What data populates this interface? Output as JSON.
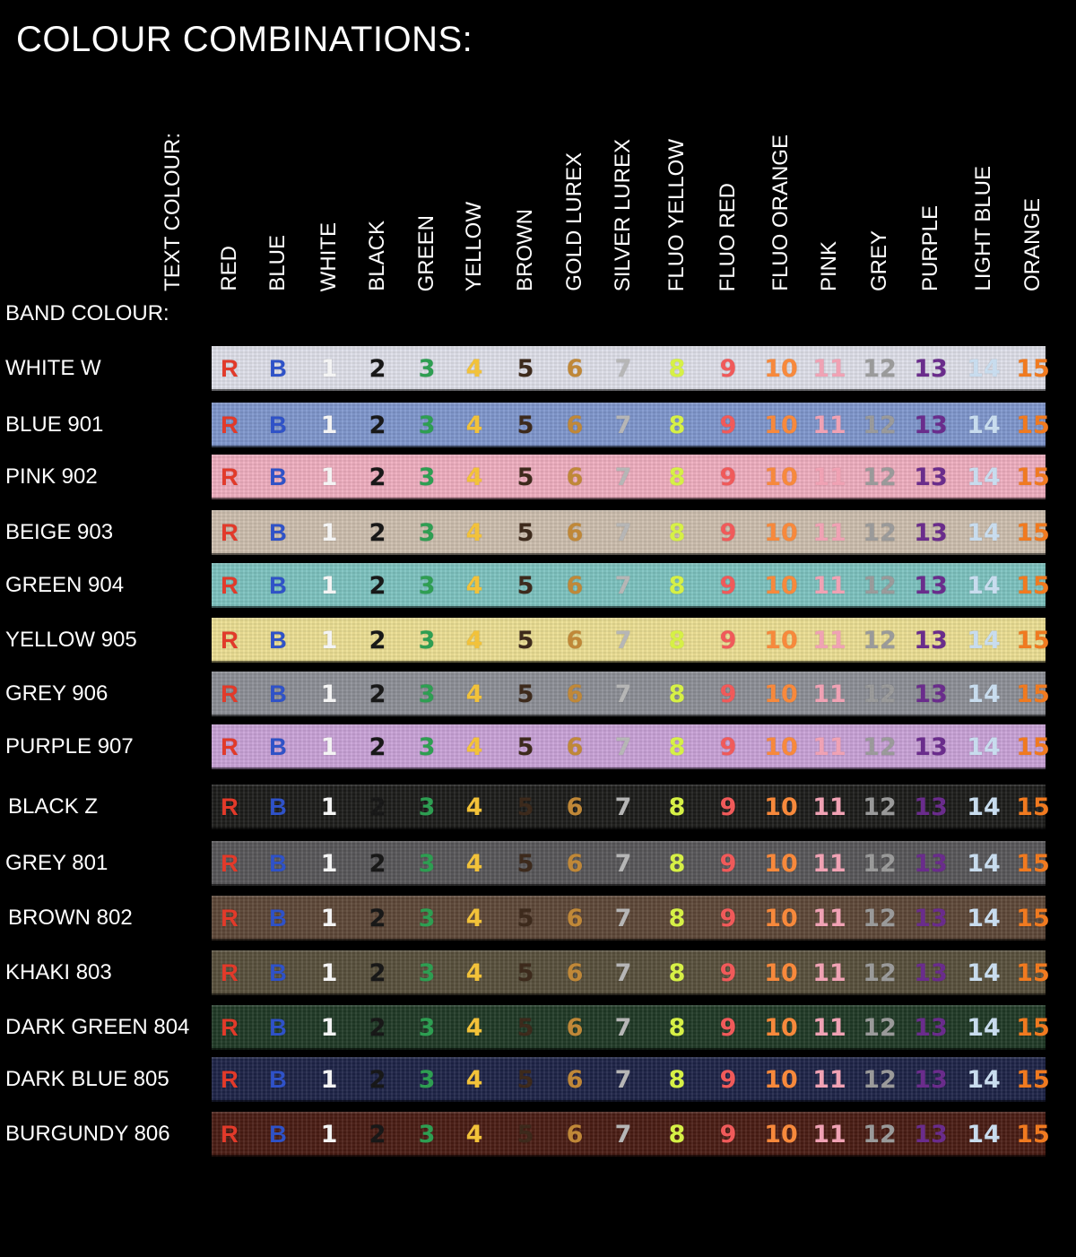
{
  "title": "COLOUR COMBINATIONS:",
  "text_colour_header": "TEXT COLOUR:",
  "band_colour_header": "BAND COLOUR:",
  "text_colours": [
    {
      "name": "RED",
      "code": "R",
      "color": "#e23a2a"
    },
    {
      "name": "BLUE",
      "code": "B",
      "color": "#2f52c8"
    },
    {
      "name": "WHITE",
      "code": "1",
      "color": "#f4f4f4"
    },
    {
      "name": "BLACK",
      "code": "2",
      "color": "#181818"
    },
    {
      "name": "GREEN",
      "code": "3",
      "color": "#2e9e52"
    },
    {
      "name": "YELLOW",
      "code": "4",
      "color": "#f2c23a"
    },
    {
      "name": "BROWN",
      "code": "5",
      "color": "#3d2a1c"
    },
    {
      "name": "GOLD LUREX",
      "code": "6",
      "color": "#c08838"
    },
    {
      "name": "SILVER LUREX",
      "code": "7",
      "color": "#b6b6b6"
    },
    {
      "name": "FLUO YELLOW",
      "code": "8",
      "color": "#d6f046"
    },
    {
      "name": "FLUO RED",
      "code": "9",
      "color": "#f05a5a"
    },
    {
      "name": "FLUO ORANGE",
      "code": "10",
      "color": "#f7893c"
    },
    {
      "name": "PINK",
      "code": "11",
      "color": "#f0a2b4"
    },
    {
      "name": "GREY",
      "code": "12",
      "color": "#9a9a9a"
    },
    {
      "name": "PURPLE",
      "code": "13",
      "color": "#6a2c8c"
    },
    {
      "name": "LIGHT BLUE",
      "code": "14",
      "color": "#c8dcee"
    },
    {
      "name": "ORANGE",
      "code": "15",
      "color": "#f07a20"
    }
  ],
  "bands": [
    {
      "label": "WHITE W",
      "color": "#dfe0ea"
    },
    {
      "label": "BLUE 901",
      "color": "#7f97cd"
    },
    {
      "label": "PINK 902",
      "color": "#f0aec0"
    },
    {
      "label": "BEIGE 903",
      "color": "#cdbfae"
    },
    {
      "label": "GREEN 904",
      "color": "#7dc3c0"
    },
    {
      "label": "YELLOW 905",
      "color": "#ecdf93"
    },
    {
      "label": "GREY 906",
      "color": "#8d8f97"
    },
    {
      "label": "PURPLE 907",
      "color": "#c9a2d8"
    },
    {
      "label": "BLACK Z",
      "color": "#1c1c1a"
    },
    {
      "label": "GREY 801",
      "color": "#58575a"
    },
    {
      "label": "BROWN 802",
      "color": "#5e4838"
    },
    {
      "label": "KHAKI 803",
      "color": "#58503c"
    },
    {
      "label": "DARK GREEN 804",
      "color": "#203a26"
    },
    {
      "label": "DARK BLUE 805",
      "color": "#1e2448"
    },
    {
      "label": "BURGUNDY 806",
      "color": "#4a1c14"
    }
  ]
}
